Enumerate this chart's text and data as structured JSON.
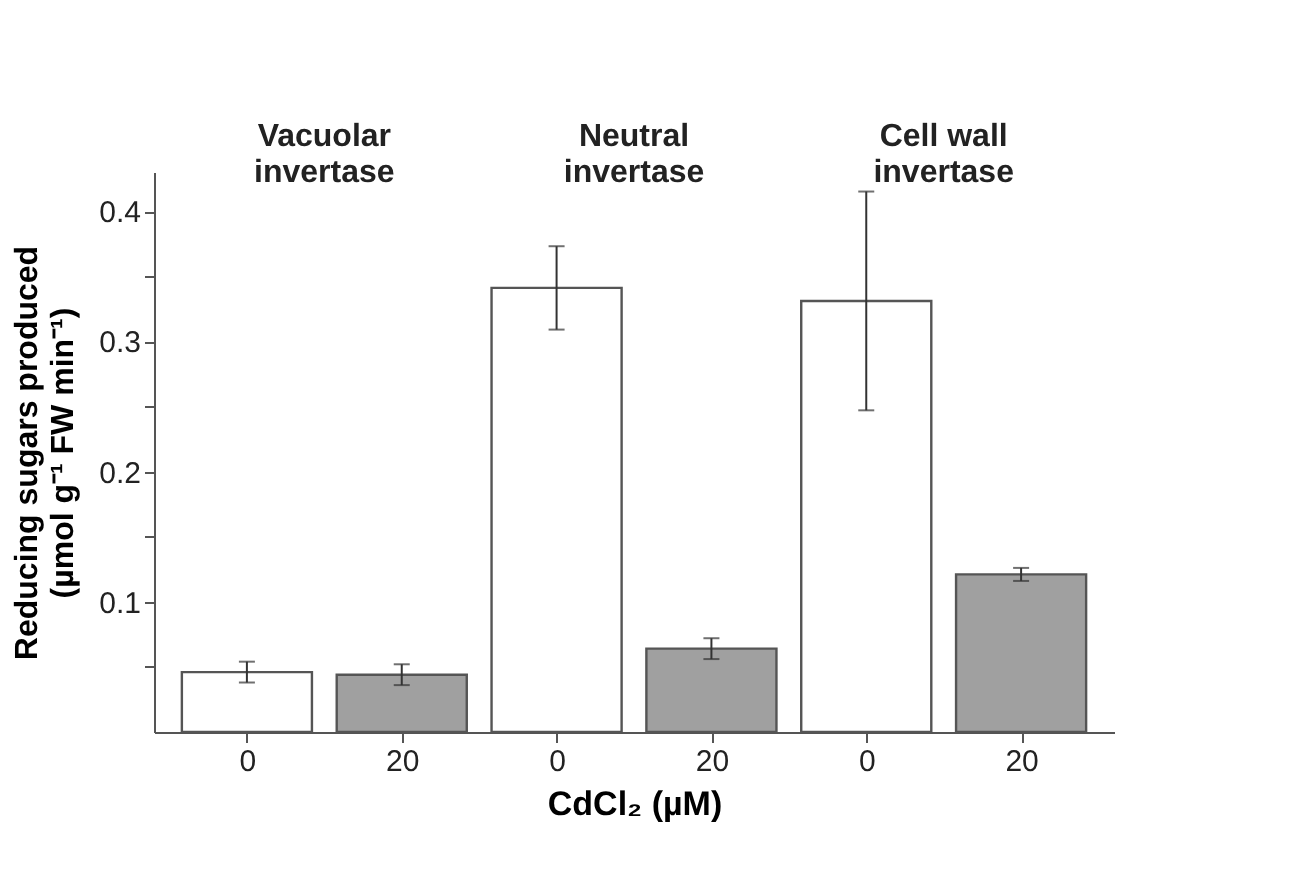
{
  "chart_data": {
    "type": "bar",
    "categories": [
      "0",
      "20",
      "0",
      "20",
      "0",
      "20"
    ],
    "values": [
      0.046,
      0.044,
      0.341,
      0.064,
      0.331,
      0.121
    ],
    "errors": [
      0.008,
      0.008,
      0.032,
      0.008,
      0.084,
      0.005
    ],
    "colors": [
      "#ffffff",
      "#a0a0a0",
      "#ffffff",
      "#a0a0a0",
      "#ffffff",
      "#a0a0a0"
    ],
    "xlabel": "CdCl₂ (µM)",
    "ylabel": "Reducing sugars produced\n(µmol g⁻¹ FW min⁻¹)",
    "ylim": [
      0,
      0.43
    ],
    "yticks": [
      {
        "value": 0.05,
        "label": null
      },
      0.1,
      {
        "value": 0.15,
        "label": null
      },
      0.2,
      {
        "value": 0.25,
        "label": null
      },
      0.3,
      {
        "value": 0.35,
        "label": null
      },
      0.4
    ],
    "annotations": [
      "Vacuolar\ninvertase",
      "Neutral\ninvertase",
      "Cell wall\ninvertase"
    ],
    "grid": false
  }
}
